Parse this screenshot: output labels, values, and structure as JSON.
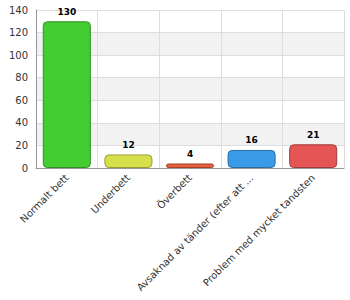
{
  "chart_data": {
    "type": "bar",
    "categories": [
      "Normalt bett",
      "Underbett",
      "Överbett",
      "Avsaknad av tänder (efter att ...",
      "Problem med mycket tandsten"
    ],
    "values": [
      130,
      12,
      4,
      16,
      21
    ],
    "colors": [
      "#44cc33",
      "#d6e04a",
      "#e8603c",
      "#3a9be8",
      "#e65555"
    ],
    "ylim": [
      0,
      140
    ],
    "yticks": [
      0,
      20,
      40,
      60,
      80,
      100,
      120,
      140
    ],
    "grid": true,
    "data_labels": true
  }
}
